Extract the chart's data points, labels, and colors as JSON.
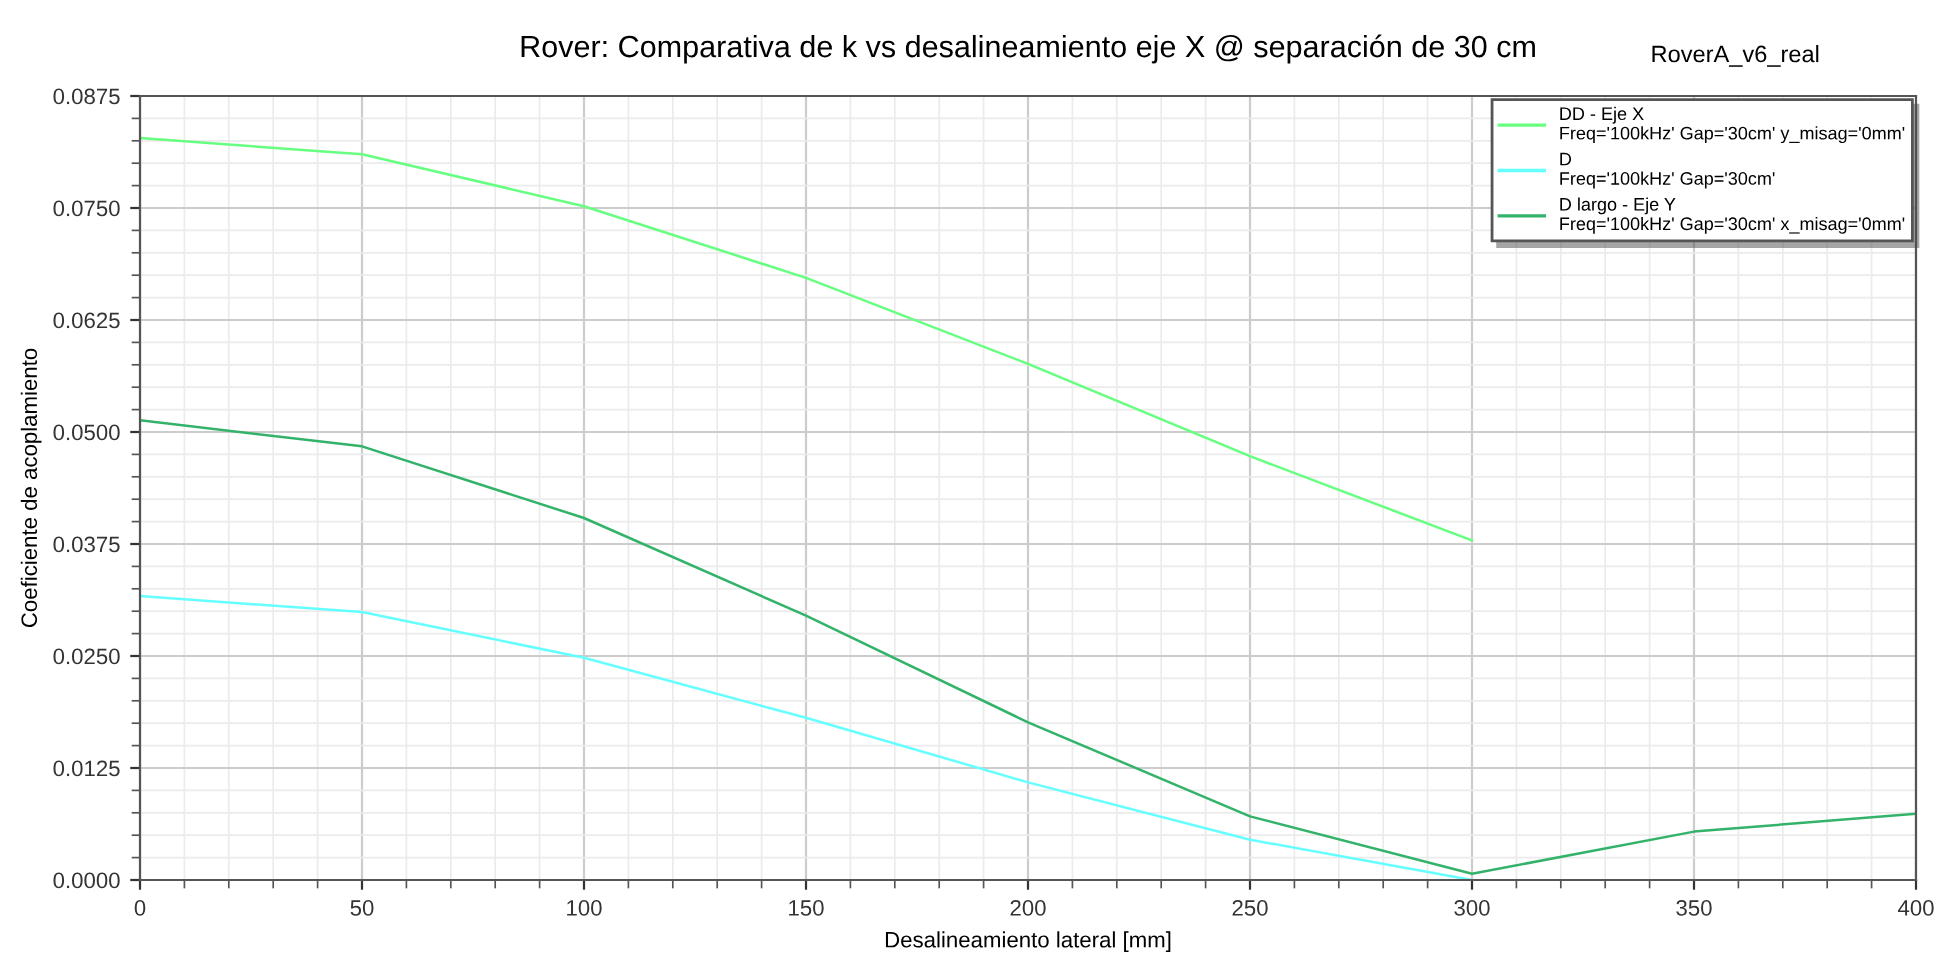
{
  "chart_data": {
    "type": "line",
    "title": "Rover: Comparativa de k vs desalineamiento eje X @ separación de 30 cm",
    "annotations": [
      "RoverA_v6_real"
    ],
    "xlabel": "Desalineamiento lateral [mm]",
    "ylabel": "Coeficiente de acoplamiento",
    "x": [
      0,
      50,
      100,
      150,
      200,
      250,
      300,
      350,
      400
    ],
    "series": [
      {
        "name": "DD - Eje X\nFreq='100kHz' Gap='30cm' y_misag='0mm'",
        "color": "#66ff80",
        "values": [
          0.0828,
          0.081,
          0.0752,
          0.0672,
          0.0576,
          0.0473,
          0.0379,
          null,
          null
        ]
      },
      {
        "name": "D\nFreq='100kHz' Gap='30cm'",
        "color": "#66ffff",
        "values": [
          0.0317,
          0.0299,
          0.0248,
          0.0181,
          0.0109,
          0.0045,
          0.0,
          null,
          null
        ]
      },
      {
        "name": "D largo - Eje Y\nFreq='100kHz' Gap='30cm' x_misag='0mm'",
        "color": "#33b36a",
        "values": [
          0.0513,
          0.0484,
          0.0404,
          0.0295,
          0.0176,
          0.0071,
          0.0007,
          0.0054,
          0.0074
        ]
      }
    ],
    "xlim": [
      0,
      400
    ],
    "xticks": [
      0,
      50,
      100,
      150,
      200,
      250,
      300,
      350,
      400
    ],
    "ylim": [
      0,
      0.0875
    ],
    "yticks": [
      {
        "value": 0,
        "label": "0.0000"
      },
      {
        "value": 0.0125,
        "label": "0.0125"
      },
      {
        "value": 0.025,
        "label": "0.0250"
      },
      {
        "value": 0.0375,
        "label": "0.0375"
      },
      {
        "value": 0.05,
        "label": "0.0500"
      },
      {
        "value": 0.0625,
        "label": "0.0625"
      },
      {
        "value": 0.075,
        "label": "0.0750"
      },
      {
        "value": 0.0875,
        "label": "0.0875"
      }
    ],
    "grid": true,
    "legend": "top right",
    "marker": "none",
    "line_style": "solid"
  }
}
